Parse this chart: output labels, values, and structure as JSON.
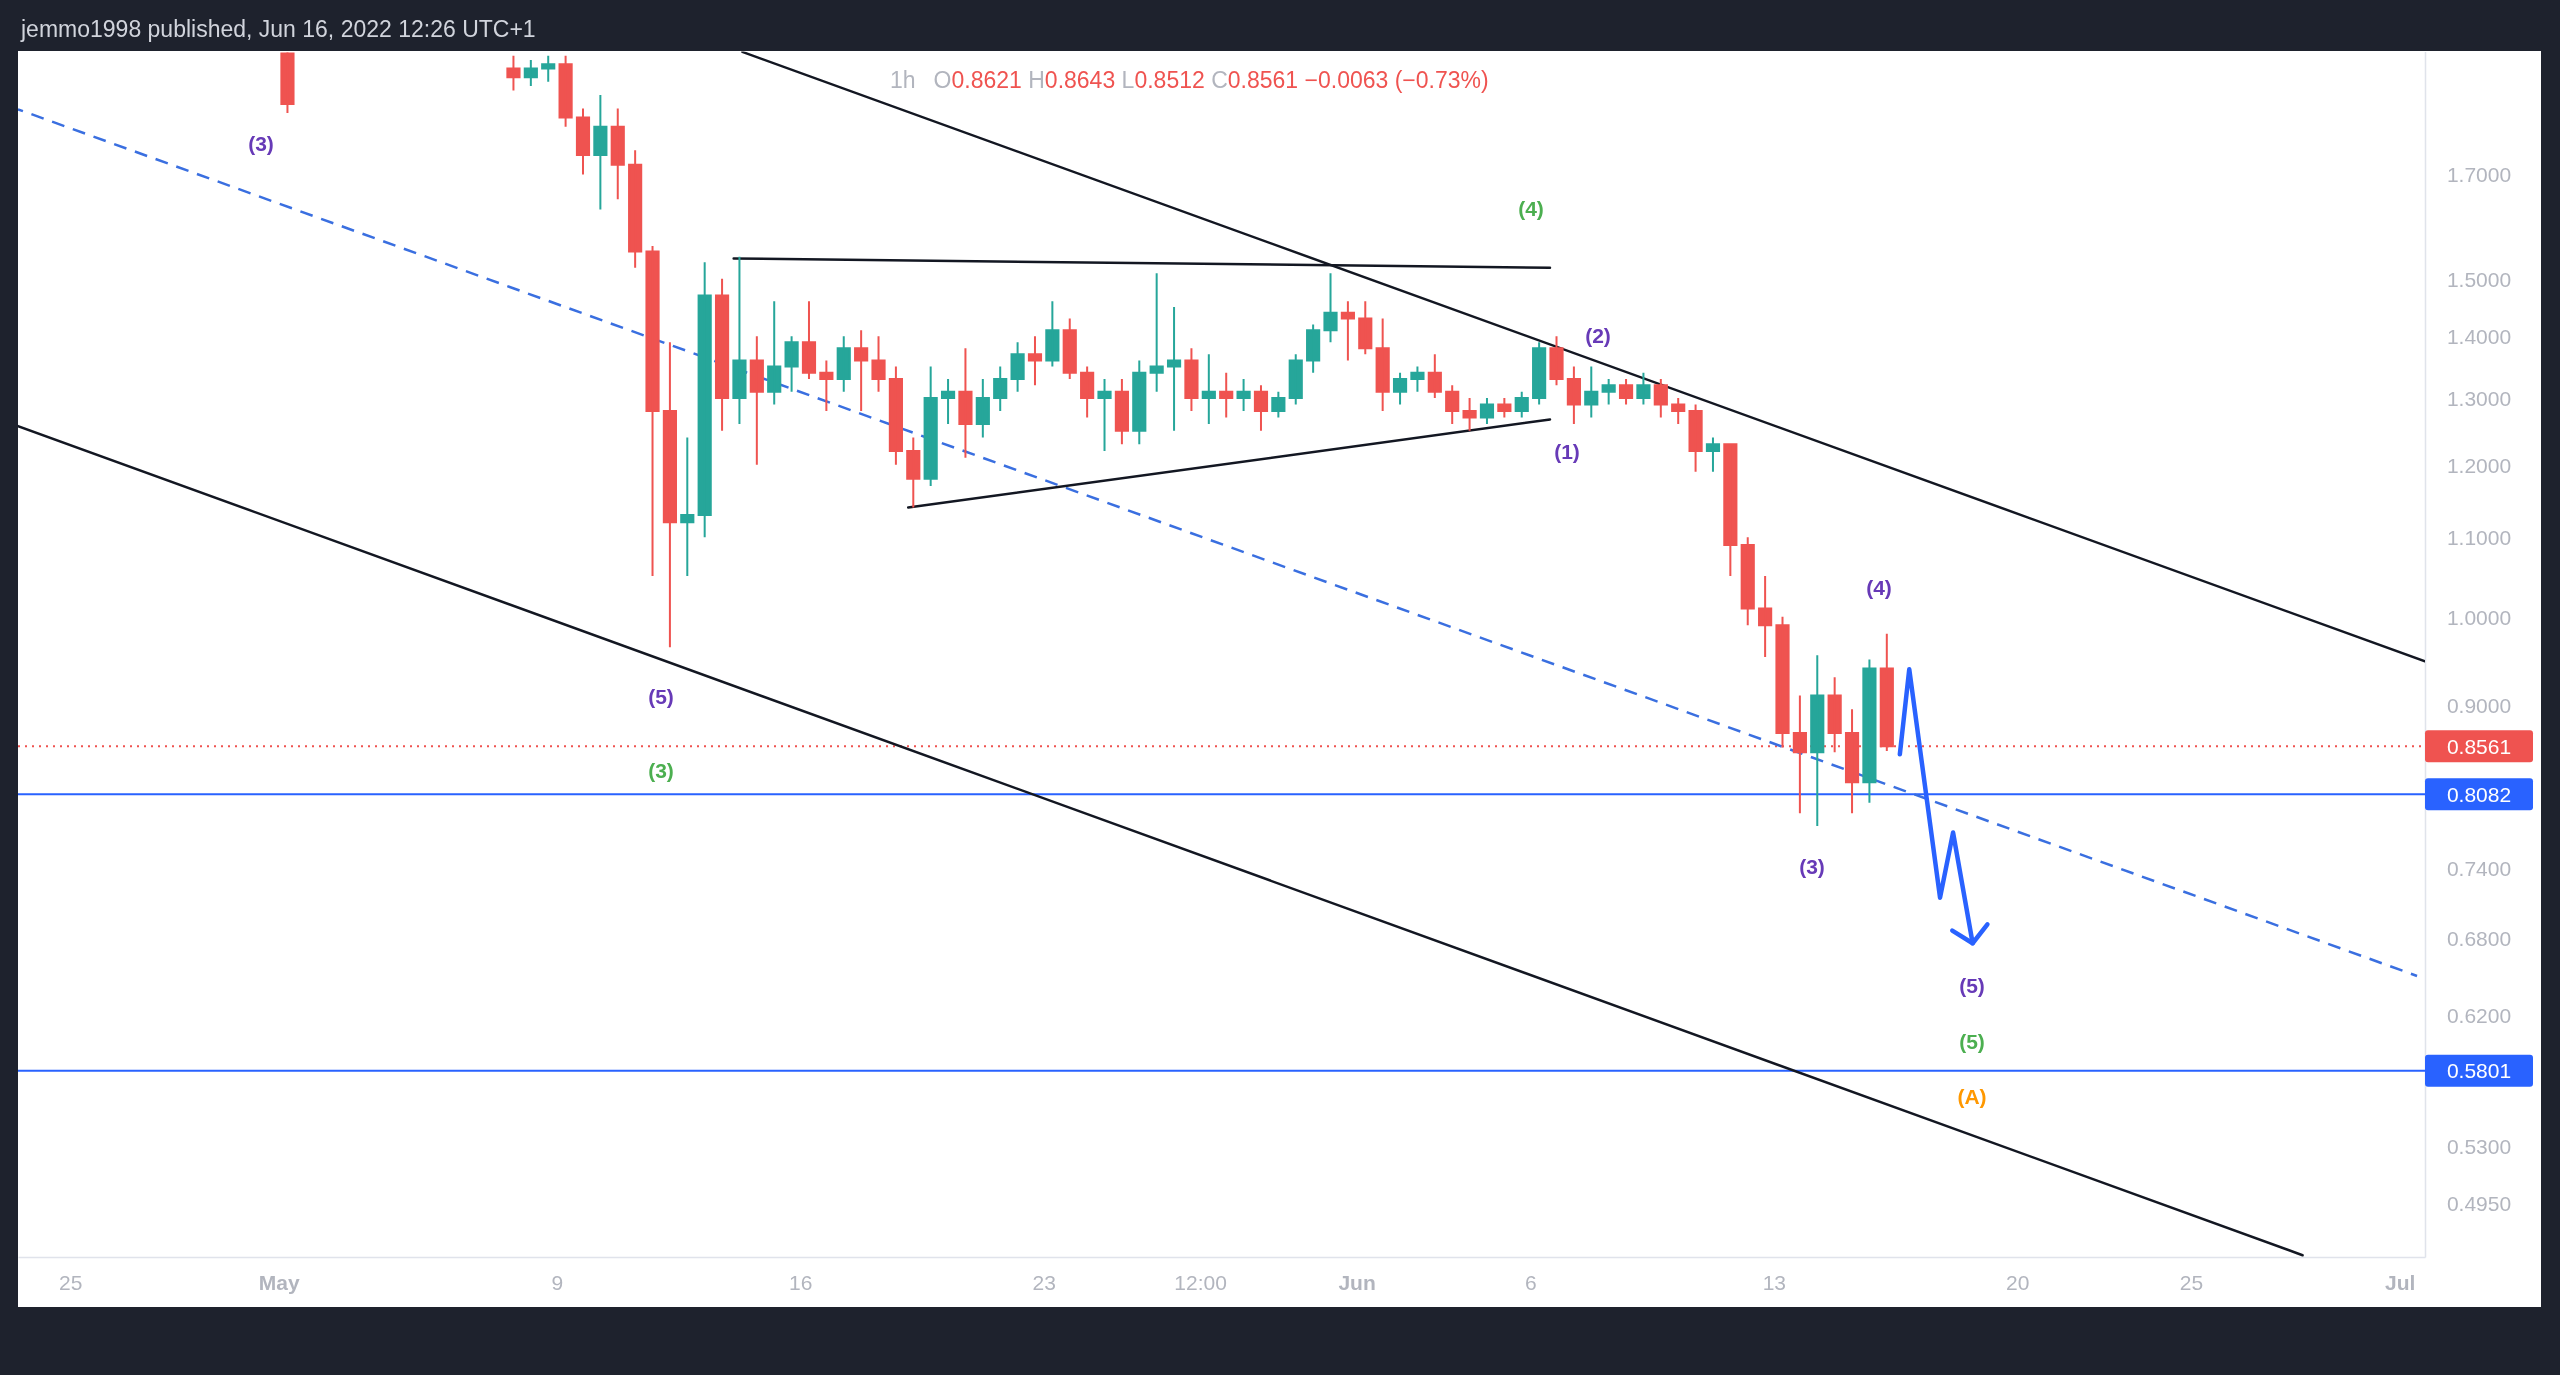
{
  "chart_data": {
    "type": "candlestick",
    "title": "1h",
    "subtitle": "O0.8621 H0.8643 L0.8512 C0.8561 −0.0063 (−0.73%)",
    "annotations": [
      "jemmo1998 published, Jun 16, 2022 12:26 UTC+1",
      "(3)",
      "(5)",
      "(3)",
      "(4)",
      "(1)",
      "(2)",
      "(3)",
      "(4)",
      "(5)",
      "(5)",
      "(A)"
    ],
    "xlim": [
      "2022-04-23T12:00",
      "2022-07-01T17:30"
    ],
    "xticks": [
      {
        "value": "2022-04-25",
        "label": "25"
      },
      {
        "value": "2022-05-01",
        "label": "May"
      },
      {
        "value": "2022-05-09",
        "label": "9"
      },
      {
        "value": "2022-05-16",
        "label": "16"
      },
      {
        "value": "2022-05-23",
        "label": "23"
      },
      {
        "value": "2022-05-27T12:00",
        "label": "12:00"
      },
      {
        "value": "2022-06-01",
        "label": "Jun"
      },
      {
        "value": "2022-06-06",
        "label": "6"
      },
      {
        "value": "2022-06-13",
        "label": "13"
      },
      {
        "value": "2022-06-20",
        "label": "20"
      },
      {
        "value": "2022-06-25",
        "label": "25"
      },
      {
        "value": "2022-07-01",
        "label": "Jul"
      }
    ],
    "ylim": [
      0.464,
      1.97
    ],
    "log": true,
    "yticks": [
      {
        "value": 1.7,
        "label": "1.7000"
      },
      {
        "value": 1.5,
        "label": "1.5000"
      },
      {
        "value": 1.4,
        "label": "1.4000"
      },
      {
        "value": 1.3,
        "label": "1.3000"
      },
      {
        "value": 1.2,
        "label": "1.2000"
      },
      {
        "value": 1.1,
        "label": "1.1000"
      },
      {
        "value": 1.0,
        "label": "1.0000"
      },
      {
        "value": 0.9,
        "label": "0.9000"
      },
      {
        "value": 0.74,
        "label": "0.7400"
      },
      {
        "value": 0.68,
        "label": "0.6800"
      },
      {
        "value": 0.62,
        "label": "0.6200"
      },
      {
        "value": 0.53,
        "label": "0.5300"
      },
      {
        "value": 0.495,
        "label": "0.4950"
      }
    ],
    "ref_lines": [
      {
        "axis": "y",
        "value": 0.8561,
        "label": "0.8561",
        "color": "#ef5350",
        "line_style": "dotted"
      },
      {
        "axis": "y",
        "value": 0.8082,
        "label": "0.8082",
        "color": "#2962ff",
        "line_style": "solid"
      },
      {
        "axis": "y",
        "value": 0.5801,
        "label": "0.5801",
        "color": "#2962ff",
        "line_style": "solid"
      }
    ],
    "series": [
      {
        "type": "line",
        "color": "#131722",
        "x": [
          "2022-05-14T08:00",
          "2022-07-01T17:30"
        ],
        "values": [
          1.969,
          0.948
        ]
      },
      {
        "type": "line",
        "color": "#131722",
        "x": [
          "2022-04-23T12:00",
          "2022-06-28T05:00"
        ],
        "values": [
          1.257,
          0.465
        ]
      },
      {
        "type": "line",
        "color": "#3a6fe0",
        "line_style": "dashed",
        "x": [
          "2022-04-23T12:00",
          "2022-07-01T12:00"
        ],
        "values": [
          1.838,
          0.65
        ]
      },
      {
        "type": "line",
        "color": "#131722",
        "x": [
          "2022-05-14T02:00",
          "2022-06-06T13:30"
        ],
        "values": [
          1.537,
          1.52
        ]
      },
      {
        "type": "line",
        "color": "#131722",
        "x": [
          "2022-05-19T02:30",
          "2022-06-06T13:30"
        ],
        "values": [
          1.14,
          1.267
        ]
      },
      {
        "type": "line",
        "color": "#2962ff",
        "x": [
          "2022-06-16T15:00",
          "2022-06-16T21:30",
          "2022-06-17T18:45",
          "2022-06-18T03:45",
          "2022-06-18T17:15"
        ],
        "values": [
          0.848,
          0.939,
          0.714,
          0.772,
          0.676
        ]
      },
      {
        "x": [
          "2022-05-01T06:00",
          "2022-05-07T18:00",
          "2022-05-08T06:00",
          "2022-05-08T18:00",
          "2022-05-09T06:00",
          "2022-05-09T18:00",
          "2022-05-10T06:00",
          "2022-05-10T18:00",
          "2022-05-11T06:00",
          "2022-05-11T18:00",
          "2022-05-12T06:00",
          "2022-05-12T18:00",
          "2022-05-13T06:00",
          "2022-05-13T18:00",
          "2022-05-14T06:00",
          "2022-05-14T18:00",
          "2022-05-15T06:00",
          "2022-05-15T18:00",
          "2022-05-16T06:00",
          "2022-05-16T18:00",
          "2022-05-17T06:00",
          "2022-05-17T18:00",
          "2022-05-18T06:00",
          "2022-05-18T18:00",
          "2022-05-19T06:00",
          "2022-05-19T18:00",
          "2022-05-20T06:00",
          "2022-05-20T18:00",
          "2022-05-21T06:00",
          "2022-05-21T18:00",
          "2022-05-22T06:00",
          "2022-05-22T18:00",
          "2022-05-23T06:00",
          "2022-05-23T18:00",
          "2022-05-24T06:00",
          "2022-05-24T18:00",
          "2022-05-25T06:00",
          "2022-05-25T18:00",
          "2022-05-26T06:00",
          "2022-05-26T18:00",
          "2022-05-27T06:00",
          "2022-05-27T18:00",
          "2022-05-28T06:00",
          "2022-05-28T18:00",
          "2022-05-29T06:00",
          "2022-05-29T18:00",
          "2022-05-30T06:00",
          "2022-05-30T18:00",
          "2022-05-31T06:00",
          "2022-05-31T18:00",
          "2022-06-01T06:00",
          "2022-06-01T18:00",
          "2022-06-02T06:00",
          "2022-06-02T18:00",
          "2022-06-03T06:00",
          "2022-06-03T18:00",
          "2022-06-04T06:00",
          "2022-06-04T18:00",
          "2022-06-05T06:00",
          "2022-06-05T18:00",
          "2022-06-06T06:00",
          "2022-06-06T18:00",
          "2022-06-07T06:00",
          "2022-06-07T18:00",
          "2022-06-08T06:00",
          "2022-06-08T18:00",
          "2022-06-09T06:00",
          "2022-06-09T18:00",
          "2022-06-10T06:00",
          "2022-06-10T18:00",
          "2022-06-11T06:00",
          "2022-06-11T18:00",
          "2022-06-12T06:00",
          "2022-06-12T18:00",
          "2022-06-13T06:00",
          "2022-06-13T18:00",
          "2022-06-14T06:00",
          "2022-06-14T18:00",
          "2022-06-15T06:00",
          "2022-06-15T18:00",
          "2022-06-16T06:00"
        ],
        "ohlc": [
          [
            1.965,
            1.968,
            1.83,
            1.85
          ],
          [
            1.93,
            1.96,
            1.88,
            1.91
          ],
          [
            1.91,
            1.95,
            1.89,
            1.93
          ],
          [
            1.93,
            1.96,
            1.9,
            1.94
          ],
          [
            1.94,
            1.96,
            1.8,
            1.82
          ],
          [
            1.82,
            1.84,
            1.7,
            1.74
          ],
          [
            1.74,
            1.87,
            1.63,
            1.8
          ],
          [
            1.8,
            1.84,
            1.65,
            1.72
          ],
          [
            1.72,
            1.75,
            1.52,
            1.55
          ],
          [
            1.55,
            1.56,
            1.05,
            1.28
          ],
          [
            1.28,
            1.39,
            0.964,
            1.12
          ],
          [
            1.12,
            1.24,
            1.05,
            1.13
          ],
          [
            1.13,
            1.53,
            1.1,
            1.47
          ],
          [
            1.47,
            1.5,
            1.25,
            1.3
          ],
          [
            1.3,
            1.54,
            1.26,
            1.36
          ],
          [
            1.36,
            1.4,
            1.2,
            1.31
          ],
          [
            1.31,
            1.46,
            1.29,
            1.35
          ],
          [
            1.35,
            1.4,
            1.31,
            1.39
          ],
          [
            1.39,
            1.46,
            1.33,
            1.34
          ],
          [
            1.34,
            1.36,
            1.28,
            1.33
          ],
          [
            1.33,
            1.4,
            1.31,
            1.38
          ],
          [
            1.38,
            1.41,
            1.28,
            1.36
          ],
          [
            1.36,
            1.4,
            1.31,
            1.33
          ],
          [
            1.33,
            1.35,
            1.2,
            1.22
          ],
          [
            1.22,
            1.24,
            1.14,
            1.18
          ],
          [
            1.18,
            1.35,
            1.17,
            1.3
          ],
          [
            1.3,
            1.33,
            1.26,
            1.31
          ],
          [
            1.31,
            1.38,
            1.21,
            1.26
          ],
          [
            1.26,
            1.33,
            1.24,
            1.3
          ],
          [
            1.3,
            1.35,
            1.28,
            1.33
          ],
          [
            1.33,
            1.39,
            1.31,
            1.37
          ],
          [
            1.37,
            1.4,
            1.32,
            1.36
          ],
          [
            1.36,
            1.46,
            1.35,
            1.41
          ],
          [
            1.41,
            1.43,
            1.33,
            1.34
          ],
          [
            1.34,
            1.35,
            1.27,
            1.3
          ],
          [
            1.3,
            1.33,
            1.22,
            1.31
          ],
          [
            1.31,
            1.33,
            1.23,
            1.25
          ],
          [
            1.25,
            1.36,
            1.23,
            1.34
          ],
          [
            1.34,
            1.51,
            1.31,
            1.35
          ],
          [
            1.35,
            1.45,
            1.25,
            1.36
          ],
          [
            1.36,
            1.38,
            1.28,
            1.3
          ],
          [
            1.3,
            1.37,
            1.26,
            1.31
          ],
          [
            1.31,
            1.34,
            1.27,
            1.3
          ],
          [
            1.3,
            1.33,
            1.28,
            1.31
          ],
          [
            1.31,
            1.32,
            1.25,
            1.28
          ],
          [
            1.28,
            1.31,
            1.27,
            1.3
          ],
          [
            1.3,
            1.37,
            1.29,
            1.36
          ],
          [
            1.36,
            1.42,
            1.34,
            1.41
          ],
          [
            1.41,
            1.51,
            1.39,
            1.44
          ],
          [
            1.44,
            1.46,
            1.36,
            1.43
          ],
          [
            1.43,
            1.46,
            1.37,
            1.38
          ],
          [
            1.38,
            1.43,
            1.28,
            1.31
          ],
          [
            1.31,
            1.34,
            1.29,
            1.33
          ],
          [
            1.33,
            1.35,
            1.31,
            1.34
          ],
          [
            1.34,
            1.37,
            1.3,
            1.31
          ],
          [
            1.31,
            1.32,
            1.26,
            1.28
          ],
          [
            1.28,
            1.3,
            1.25,
            1.27
          ],
          [
            1.27,
            1.3,
            1.26,
            1.29
          ],
          [
            1.29,
            1.3,
            1.27,
            1.28
          ],
          [
            1.28,
            1.31,
            1.27,
            1.3
          ],
          [
            1.3,
            1.39,
            1.29,
            1.38
          ],
          [
            1.38,
            1.4,
            1.32,
            1.33
          ],
          [
            1.33,
            1.35,
            1.26,
            1.29
          ],
          [
            1.29,
            1.35,
            1.27,
            1.31
          ],
          [
            1.31,
            1.33,
            1.29,
            1.32
          ],
          [
            1.32,
            1.33,
            1.29,
            1.3
          ],
          [
            1.3,
            1.34,
            1.29,
            1.32
          ],
          [
            1.32,
            1.33,
            1.27,
            1.29
          ],
          [
            1.29,
            1.3,
            1.26,
            1.28
          ],
          [
            1.28,
            1.29,
            1.19,
            1.22
          ],
          [
            1.22,
            1.24,
            1.19,
            1.23
          ],
          [
            1.23,
            1.23,
            1.05,
            1.09
          ],
          [
            1.09,
            1.1,
            0.99,
            1.01
          ],
          [
            1.01,
            1.05,
            0.953,
            0.99
          ],
          [
            0.99,
            1.0,
            0.855,
            0.87
          ],
          [
            0.87,
            0.91,
            0.79,
            0.85
          ],
          [
            0.85,
            0.955,
            0.778,
            0.91
          ],
          [
            0.91,
            0.93,
            0.85,
            0.87
          ],
          [
            0.87,
            0.895,
            0.79,
            0.82
          ],
          [
            0.82,
            0.95,
            0.8,
            0.94
          ],
          [
            0.94,
            0.98,
            0.8512,
            0.8561
          ]
        ],
        "colors": [
          "#ef5350",
          "#ef5350",
          "#26a69a",
          "#26a69a",
          "#ef5350",
          "#ef5350",
          "#26a69a",
          "#ef5350",
          "#ef5350",
          "#ef5350",
          "#ef5350",
          "#26a69a",
          "#26a69a",
          "#ef5350",
          "#26a69a",
          "#ef5350",
          "#26a69a",
          "#26a69a",
          "#ef5350",
          "#ef5350",
          "#26a69a",
          "#ef5350",
          "#ef5350",
          "#ef5350",
          "#ef5350",
          "#26a69a",
          "#26a69a",
          "#ef5350",
          "#26a69a",
          "#26a69a",
          "#26a69a",
          "#ef5350",
          "#26a69a",
          "#ef5350",
          "#ef5350",
          "#26a69a",
          "#ef5350",
          "#26a69a",
          "#26a69a",
          "#26a69a",
          "#ef5350",
          "#26a69a",
          "#ef5350",
          "#26a69a",
          "#ef5350",
          "#26a69a",
          "#26a69a",
          "#26a69a",
          "#26a69a",
          "#ef5350",
          "#ef5350",
          "#ef5350",
          "#26a69a",
          "#26a69a",
          "#ef5350",
          "#ef5350",
          "#ef5350",
          "#26a69a",
          "#ef5350",
          "#26a69a",
          "#26a69a",
          "#ef5350",
          "#ef5350",
          "#26a69a",
          "#26a69a",
          "#ef5350",
          "#26a69a",
          "#ef5350",
          "#ef5350",
          "#ef5350",
          "#26a69a",
          "#ef5350",
          "#ef5350",
          "#ef5350",
          "#ef5350",
          "#ef5350",
          "#26a69a",
          "#ef5350",
          "#ef5350",
          "#26a69a",
          "#ef5350"
        ]
      }
    ]
  }
}
